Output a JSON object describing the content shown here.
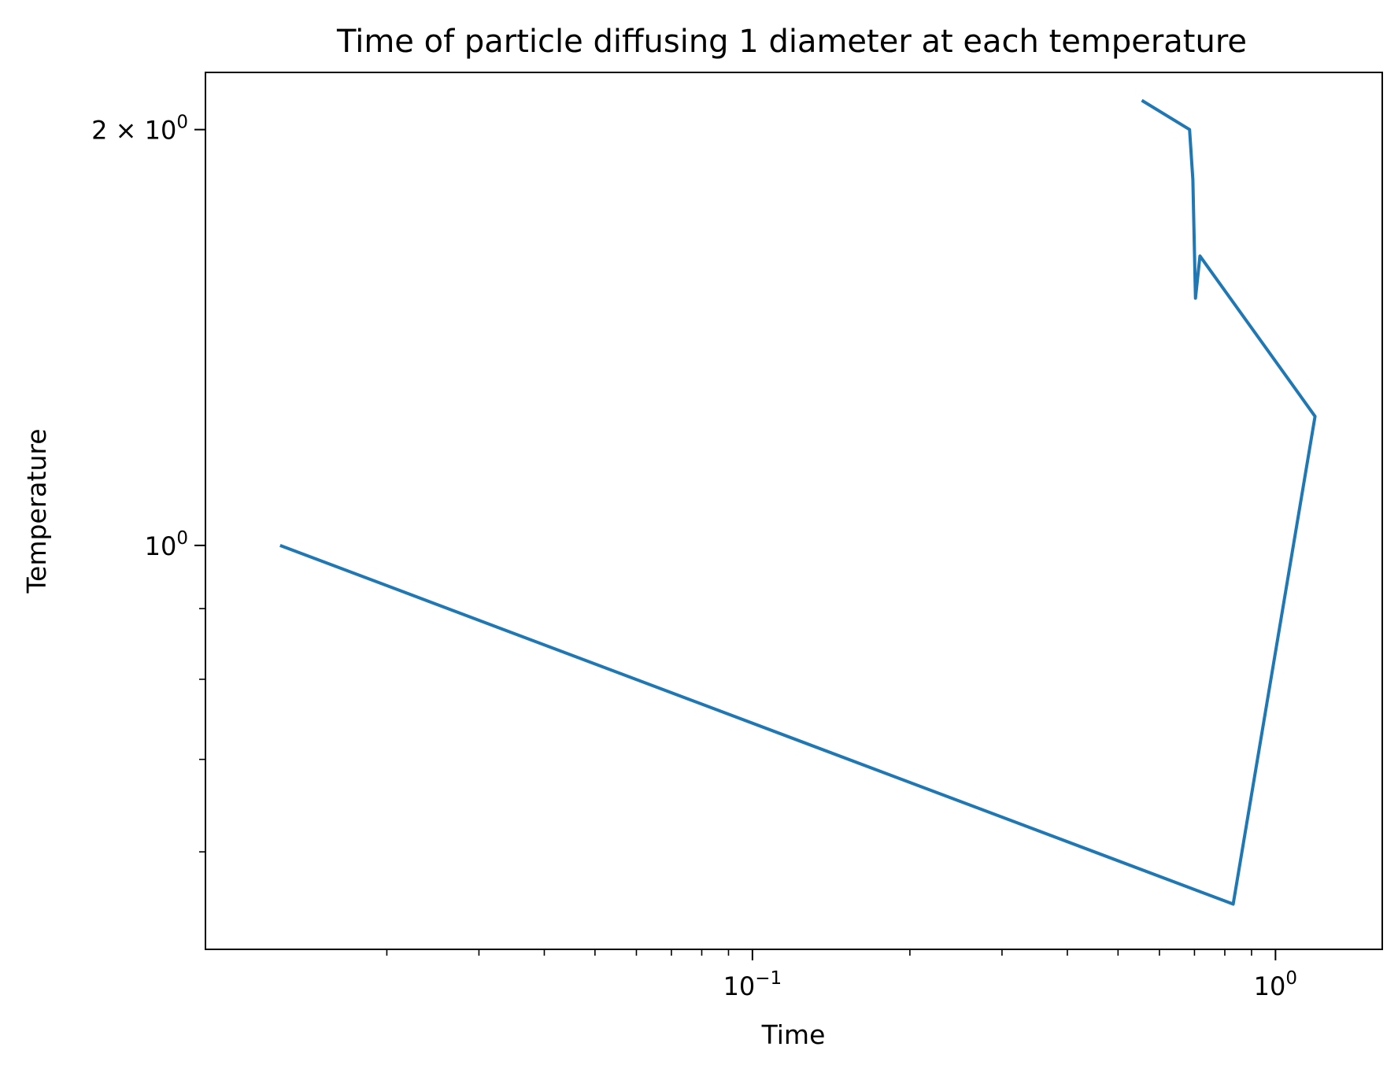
{
  "chart_data": {
    "type": "line",
    "title": "Time of particle diffusing 1 diameter at each temperature",
    "xlabel": "Time",
    "ylabel": "Temperature",
    "xscale": "log",
    "yscale": "log",
    "xlim": [
      0.009,
      1.6
    ],
    "ylim": [
      0.51,
      2.2
    ],
    "grid": false,
    "series_color": "#1f77b4",
    "x_tick_labels": [
      {
        "value": 0.1,
        "base": "10",
        "exp": "−1"
      },
      {
        "value": 1.0,
        "base": "10",
        "exp": "0"
      }
    ],
    "y_tick_labels": [
      {
        "value": 1.0,
        "base": "10",
        "exp": "0"
      },
      {
        "value": 2.0,
        "base": "2 × 10",
        "exp": "0"
      }
    ],
    "x_minor_ticks": [
      0.02,
      0.03,
      0.04,
      0.05,
      0.06,
      0.07,
      0.08,
      0.09,
      0.2,
      0.3,
      0.4,
      0.5,
      0.6,
      0.7,
      0.8,
      0.9
    ],
    "y_minor_ticks": [
      0.6,
      0.7,
      0.8,
      0.9
    ],
    "x": [
      0.0125,
      0.83,
      1.19,
      0.717,
      0.703,
      0.695,
      0.685,
      0.555
    ],
    "y": [
      1.0,
      0.55,
      1.24,
      1.62,
      1.51,
      1.84,
      2.0,
      2.1
    ]
  }
}
